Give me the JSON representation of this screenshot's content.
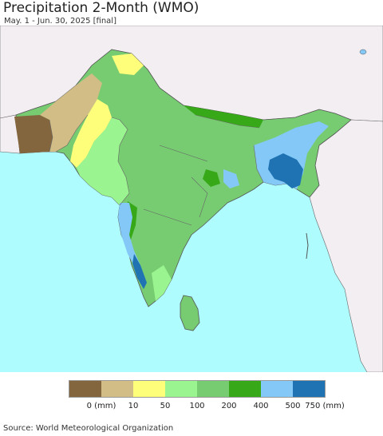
{
  "title": "Precipitation 2-Month (WMO)",
  "subtitle": "May. 1 - Jun. 30, 2025 [final]",
  "source": "Source: World Meteorological Organization",
  "colors": {
    "ocean": "#aefcfe",
    "land_outside": "#f3eef2",
    "border": "#555555"
  },
  "legend": {
    "colors": [
      "#84663e",
      "#d1bd85",
      "#fefe7b",
      "#9af48f",
      "#77cc72",
      "#37a818",
      "#84c8f8",
      "#1f73b3"
    ],
    "ticks": [
      "0 (mm)",
      "10",
      "50",
      "100",
      "200",
      "400",
      "500",
      "750 (mm)"
    ]
  }
}
